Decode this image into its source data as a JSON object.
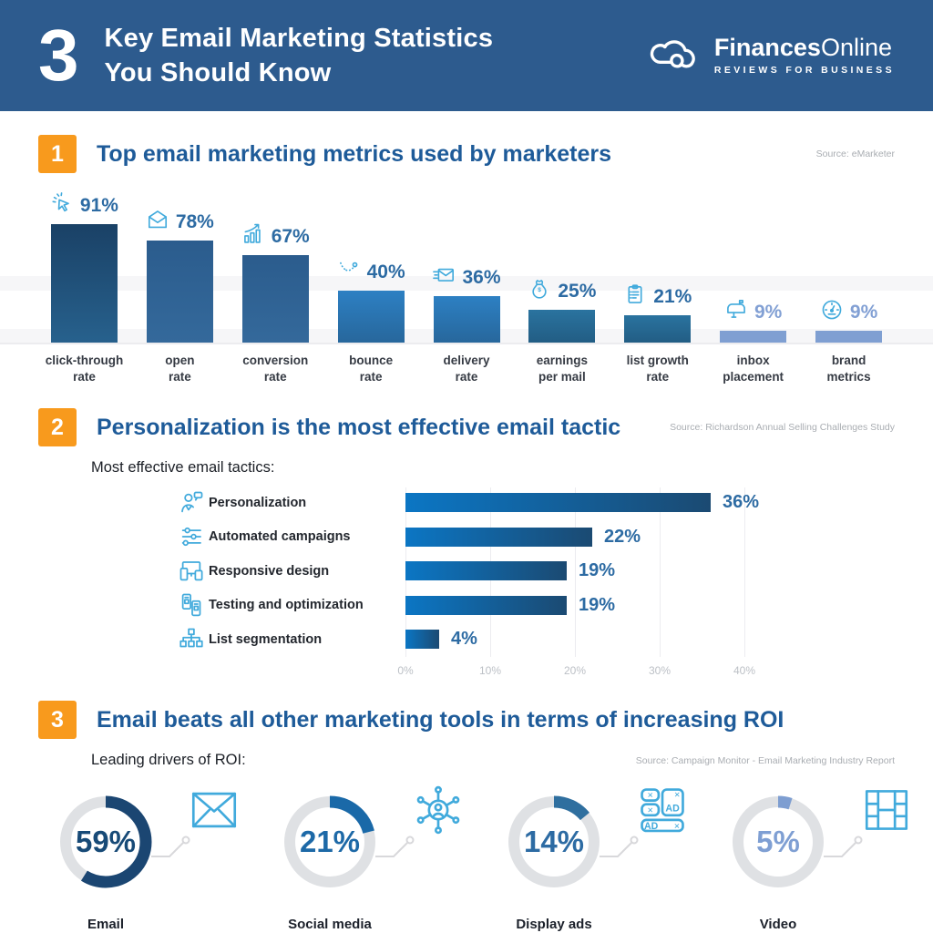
{
  "theme": {
    "header_bg": "#2d5b8e",
    "accent_orange": "#f89a1d",
    "section_title_blue": "#1e5b99",
    "value_blue": "#2d6ba3",
    "light_value_blue": "#82a0d4",
    "icon_blue": "#41aadc",
    "ring_gray": "#dfe1e4",
    "connector_gray": "#d8d8db",
    "source_gray": "#a9adb2"
  },
  "header": {
    "big_number": "3",
    "title_line1": "Key Email Marketing Statistics",
    "title_line2": "You Should Know",
    "logo": {
      "icon": "cloud-logo-icon",
      "brand_bold": "Finances",
      "brand_light": "Online",
      "tagline": "REVIEWS FOR BUSINESS"
    }
  },
  "sections": [
    {
      "number": "1",
      "title": "Top email marketing metrics used by marketers",
      "source": "Source: eMarketer"
    },
    {
      "number": "2",
      "title": "Personalization is the most effective email tactic",
      "source": "Source: Richardson Annual Selling Challenges Study",
      "subtitle": "Most effective email tactics:"
    },
    {
      "number": "3",
      "title": "Email beats all other marketing tools in terms of increasing ROI",
      "subtitle": "Leading drivers of ROI:",
      "source": "Source: Campaign Monitor - Email Marketing Industry Report"
    }
  ],
  "chart_data": [
    {
      "type": "bar",
      "title": "Top email marketing metrics used by marketers",
      "unit": "%",
      "ylim": [
        0,
        100
      ],
      "categories": [
        "click-through rate",
        "open rate",
        "conversion rate",
        "bounce rate",
        "delivery rate",
        "earnings per mail",
        "list growth rate",
        "inbox placement",
        "brand metrics"
      ],
      "label_lines": [
        [
          "click-through",
          "rate"
        ],
        [
          "open",
          "rate"
        ],
        [
          "conversion",
          "rate"
        ],
        [
          "bounce",
          "rate"
        ],
        [
          "delivery",
          "rate"
        ],
        [
          "earnings",
          "per mail"
        ],
        [
          "list growth",
          "rate"
        ],
        [
          "inbox",
          "placement"
        ],
        [
          "brand",
          "metrics"
        ]
      ],
      "values": [
        91,
        78,
        67,
        40,
        36,
        25,
        21,
        9,
        9
      ],
      "value_labels": [
        "91%",
        "78%",
        "67%",
        "40%",
        "36%",
        "25%",
        "21%",
        "9%",
        "9%"
      ],
      "value_colors": [
        "#2d6ba3",
        "#2d6ba3",
        "#2d6ba3",
        "#2d6ba3",
        "#2d6ba3",
        "#2d6ba3",
        "#2d6ba3",
        "#82a0d4",
        "#82a0d4"
      ],
      "bar_gradients": [
        [
          "#1a4166",
          "#27618d"
        ],
        [
          "#2b5c8d",
          "#34699b"
        ],
        [
          "#2b5c8d",
          "#34699b"
        ],
        [
          "#2d80c3",
          "#27679c"
        ],
        [
          "#2d80c3",
          "#27679c"
        ],
        [
          "#2a739f",
          "#225d84"
        ],
        [
          "#2a739f",
          "#225d84"
        ],
        [
          "#7f9fd2",
          "#7f9fd2"
        ],
        [
          "#7f9fd2",
          "#7f9fd2"
        ]
      ],
      "icons": [
        "cursor-click-icon",
        "open-envelope-icon",
        "growth-chart-icon",
        "bounce-path-icon",
        "send-envelope-icon",
        "money-bag-icon",
        "checklist-icon",
        "mailbox-icon",
        "gauge-icon"
      ]
    },
    {
      "type": "bar",
      "orientation": "horizontal",
      "title": "Most effective email tactics",
      "unit": "%",
      "xlim": [
        0,
        40
      ],
      "x_ticks": [
        "0%",
        "10%",
        "20%",
        "30%",
        "40%"
      ],
      "categories": [
        "Personalization",
        "Automated campaigns",
        "Responsive design",
        "Testing and optimization",
        "List segmentation"
      ],
      "values": [
        36,
        22,
        19,
        19,
        4
      ],
      "value_labels": [
        "36%",
        "22%",
        "19%",
        "19%",
        "4%"
      ],
      "bar_gradient": [
        "#0b76c4",
        "#1b4a72"
      ],
      "icons": [
        "person-chat-icon",
        "sliders-icon",
        "responsive-devices-icon",
        "ab-testing-phones-icon",
        "segmentation-tree-icon"
      ]
    },
    {
      "type": "donut",
      "title": "Leading drivers of ROI",
      "unit": "%",
      "categories": [
        "Email",
        "Social media",
        "Display ads",
        "Video"
      ],
      "values": [
        59,
        21,
        14,
        5
      ],
      "value_labels": [
        "59%",
        "21%",
        "14%",
        "5%"
      ],
      "colors": [
        "#1b4672",
        "#1a69a8",
        "#2f6f9f",
        "#7e9ed1"
      ],
      "value_colors": [
        "#174a77",
        "#1d69a7",
        "#2d6ba3",
        "#7f9fd3"
      ],
      "icons": [
        "envelope-icon",
        "social-network-icon",
        "display-ads-icon",
        "film-strip-icon"
      ]
    }
  ]
}
